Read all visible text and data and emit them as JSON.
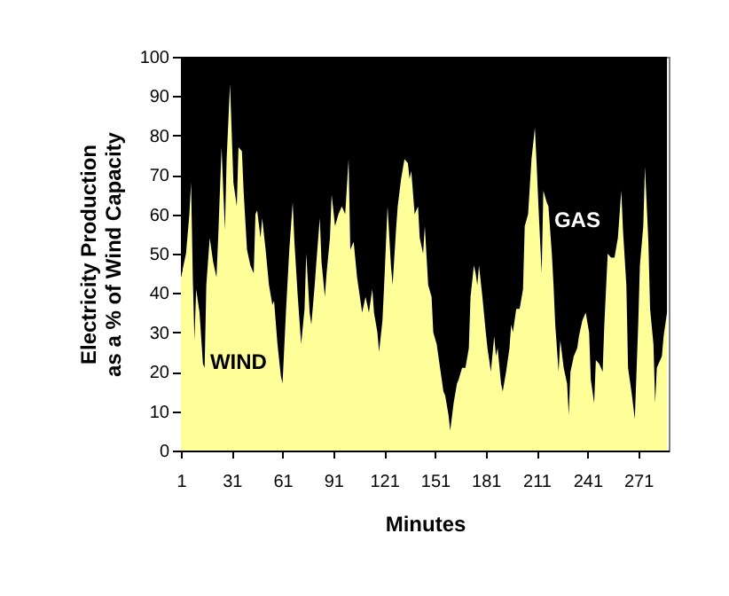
{
  "chart_data": {
    "type": "area",
    "stacked": true,
    "xlabel": "Minutes",
    "ylabel": "Electricity Production as a % of Wind Capacity",
    "x": [
      1,
      4,
      6,
      7,
      8,
      9,
      10,
      12,
      14,
      15,
      16,
      18,
      20,
      22,
      23,
      25,
      26,
      27,
      28,
      30,
      32,
      34,
      35,
      37,
      38,
      40,
      42,
      44,
      45,
      46,
      48,
      49,
      51,
      53,
      55,
      56,
      58,
      60,
      61,
      63,
      65,
      67,
      68,
      70,
      72,
      74,
      75,
      77,
      78,
      80,
      81,
      83,
      84,
      86,
      87,
      89,
      90,
      92,
      94,
      96,
      98,
      100,
      101,
      103,
      105,
      107,
      108,
      110,
      112,
      114,
      115,
      117,
      118,
      120,
      121,
      123,
      125,
      126,
      128,
      129,
      131,
      133,
      135,
      136,
      137,
      139,
      141,
      142,
      144,
      145,
      147,
      149,
      150,
      152,
      154,
      156,
      157,
      159,
      160,
      162,
      164,
      165,
      167,
      169,
      171,
      172,
      174,
      175,
      176,
      177,
      179,
      181,
      182,
      184,
      186,
      187,
      188,
      190,
      191,
      193,
      195,
      196,
      197,
      199,
      201,
      203,
      204,
      206,
      208,
      210,
      211,
      212,
      213,
      214,
      215,
      217,
      218,
      220,
      221,
      222,
      224,
      225,
      227,
      229,
      230,
      231,
      233,
      235,
      236,
      238,
      240,
      242,
      243,
      245,
      246,
      248,
      250,
      251,
      253,
      255,
      257,
      259,
      261,
      262,
      264,
      265,
      267,
      269,
      271,
      272,
      274,
      275,
      277,
      278,
      280,
      281,
      282,
      285,
      286,
      288
    ],
    "series": [
      {
        "name": "WIND",
        "color": "#ffff99",
        "values": [
          44,
          50,
          60,
          68,
          44,
          28,
          41,
          35,
          22,
          21,
          42,
          54,
          48,
          44,
          54,
          77,
          66,
          56,
          74,
          93,
          68,
          62,
          77,
          76,
          66,
          51,
          47,
          45,
          60,
          61,
          54,
          59,
          51,
          42,
          37,
          38,
          27,
          19,
          17,
          35,
          51,
          63,
          53,
          39,
          27,
          36,
          50,
          35,
          32,
          42,
          48,
          59,
          48,
          39,
          45,
          54,
          65,
          57,
          60,
          62,
          60,
          74,
          51,
          53,
          44,
          38,
          35,
          39,
          35,
          41,
          35,
          30,
          25,
          33,
          42,
          62,
          47,
          42,
          56,
          62,
          69,
          74,
          73,
          69,
          71,
          60,
          62,
          54,
          50,
          57,
          42,
          39,
          30,
          27,
          21,
          15,
          14,
          9,
          5,
          12,
          17,
          18,
          21,
          21,
          26,
          39,
          47,
          45,
          42,
          47,
          39,
          30,
          26,
          20,
          29,
          24,
          26,
          17,
          15,
          20,
          26,
          32,
          30,
          36,
          36,
          41,
          57,
          60,
          74,
          82,
          73,
          63,
          54,
          45,
          66,
          63,
          62,
          50,
          42,
          32,
          20,
          28,
          21,
          17,
          9,
          20,
          24,
          26,
          29,
          33,
          35,
          30,
          18,
          12,
          23,
          22,
          20,
          32,
          50,
          49,
          49,
          54,
          66,
          56,
          42,
          21,
          15,
          8,
          32,
          47,
          57,
          72,
          53,
          36,
          27,
          12,
          21,
          24,
          29,
          35
        ]
      },
      {
        "name": "GAS",
        "color": "#000000",
        "values": [
          56,
          50,
          40,
          32,
          56,
          72,
          59,
          65,
          78,
          79,
          58,
          46,
          52,
          56,
          46,
          23,
          34,
          44,
          26,
          7,
          32,
          38,
          23,
          24,
          34,
          49,
          53,
          55,
          40,
          39,
          46,
          41,
          49,
          58,
          63,
          62,
          73,
          81,
          83,
          65,
          49,
          37,
          47,
          61,
          73,
          64,
          50,
          65,
          68,
          58,
          52,
          41,
          52,
          61,
          55,
          46,
          35,
          43,
          40,
          38,
          40,
          26,
          49,
          47,
          56,
          62,
          65,
          61,
          65,
          59,
          65,
          70,
          75,
          67,
          58,
          38,
          53,
          58,
          44,
          38,
          31,
          26,
          27,
          31,
          29,
          40,
          38,
          46,
          50,
          43,
          58,
          61,
          70,
          73,
          79,
          85,
          86,
          91,
          95,
          88,
          83,
          82,
          79,
          79,
          74,
          61,
          53,
          55,
          58,
          53,
          61,
          70,
          74,
          80,
          71,
          76,
          74,
          83,
          85,
          80,
          74,
          68,
          70,
          64,
          64,
          59,
          43,
          40,
          26,
          18,
          27,
          37,
          46,
          55,
          34,
          37,
          38,
          50,
          58,
          68,
          80,
          72,
          79,
          83,
          91,
          80,
          76,
          74,
          71,
          67,
          65,
          70,
          82,
          88,
          77,
          78,
          80,
          68,
          50,
          51,
          51,
          46,
          34,
          44,
          58,
          79,
          85,
          92,
          68,
          53,
          43,
          28,
          47,
          64,
          73,
          88,
          79,
          76,
          71,
          65
        ]
      }
    ],
    "xlim": [
      1,
      289
    ],
    "xticks": [
      1,
      31,
      61,
      91,
      121,
      151,
      181,
      211,
      241,
      271
    ],
    "ylim": [
      0,
      100
    ],
    "yticks": [
      0,
      10,
      20,
      30,
      40,
      50,
      60,
      70,
      80,
      90,
      100
    ],
    "grid": false,
    "legend": false
  }
}
